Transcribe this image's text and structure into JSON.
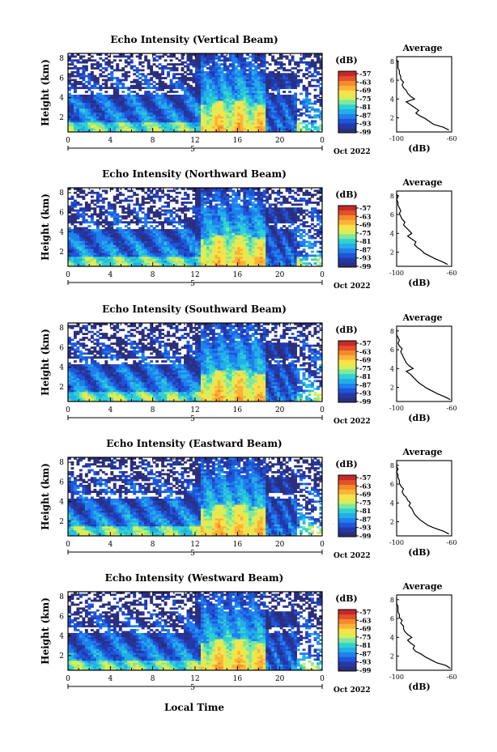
{
  "figure": {
    "xlabel": "Local Time",
    "date_label": "Oct 2022"
  },
  "chart_data": [
    {
      "type": "heatmap",
      "title": "Echo Intensity (Vertical Beam)",
      "ylabel": "Height (km)",
      "xlabel": "Local Time",
      "x_ticks": [
        "0",
        "4",
        "8",
        "12",
        "16",
        "20",
        "0"
      ],
      "date_tick": "5",
      "y_ticks": [
        "2",
        "4",
        "6",
        "8"
      ],
      "xlim": [
        0,
        24
      ],
      "ylim": [
        0.5,
        8.5
      ],
      "colorbar": {
        "label": "(dB)",
        "ticks": [
          "-57",
          "-63",
          "-69",
          "-75",
          "-81",
          "-87",
          "-93",
          "-99"
        ]
      },
      "date_label": "Oct 2022",
      "profile": {
        "title": "Average",
        "xlabel": "(dB)",
        "x_ticks": [
          "-100",
          "-60"
        ],
        "xlim": [
          -100,
          -60
        ],
        "y_ticks": [
          "2",
          "4",
          "6",
          "8"
        ],
        "ylim": [
          0.5,
          8.5
        ],
        "height": [
          0.7,
          1.0,
          1.3,
          1.6,
          1.9,
          2.2,
          2.5,
          2.8,
          3.1,
          3.4,
          3.7,
          4.0,
          4.3,
          4.6,
          4.9,
          5.2,
          5.5,
          5.8,
          6.1,
          6.4,
          6.7,
          7.0,
          7.3,
          7.6,
          7.9,
          8.2
        ],
        "value": [
          -62,
          -66,
          -73,
          -76,
          -79,
          -83,
          -86,
          -84,
          -87,
          -90,
          -93,
          -87,
          -90,
          -92,
          -93,
          -95,
          -96,
          -95,
          -97,
          -97,
          -98,
          -98,
          -99,
          -99,
          -99,
          -100
        ]
      }
    },
    {
      "type": "heatmap",
      "title": "Echo Intensity (Northward Beam)",
      "ylabel": "Height (km)",
      "xlabel": "Local Time",
      "x_ticks": [
        "0",
        "4",
        "8",
        "12",
        "16",
        "20",
        "0"
      ],
      "date_tick": "5",
      "y_ticks": [
        "2",
        "4",
        "6",
        "8"
      ],
      "xlim": [
        0,
        24
      ],
      "ylim": [
        0.5,
        8.5
      ],
      "colorbar": {
        "label": "(dB)",
        "ticks": [
          "-57",
          "-63",
          "-69",
          "-75",
          "-81",
          "-87",
          "-93",
          "-99"
        ]
      },
      "date_label": "Oct 2022",
      "profile": {
        "title": "Average",
        "xlabel": "(dB)",
        "x_ticks": [
          "-100",
          "-60"
        ],
        "xlim": [
          -100,
          -60
        ],
        "y_ticks": [
          "2",
          "4",
          "6",
          "8"
        ],
        "ylim": [
          0.5,
          8.5
        ],
        "height": [
          0.7,
          1.0,
          1.3,
          1.6,
          1.9,
          2.2,
          2.5,
          2.8,
          3.1,
          3.4,
          3.7,
          4.0,
          4.3,
          4.6,
          4.9,
          5.2,
          5.5,
          5.8,
          6.1,
          6.4,
          6.7,
          7.0,
          7.3,
          7.6,
          7.9,
          8.2
        ],
        "value": [
          -63,
          -67,
          -72,
          -76,
          -80,
          -82,
          -85,
          -87,
          -86,
          -89,
          -92,
          -89,
          -91,
          -93,
          -95,
          -94,
          -96,
          -97,
          -98,
          -97,
          -98,
          -99,
          -99,
          -100,
          -99,
          -100
        ]
      }
    },
    {
      "type": "heatmap",
      "title": "Echo Intensity (Southward Beam)",
      "ylabel": "Height (km)",
      "xlabel": "Local Time",
      "x_ticks": [
        "0",
        "4",
        "8",
        "12",
        "16",
        "20",
        "0"
      ],
      "date_tick": "5",
      "y_ticks": [
        "2",
        "4",
        "6",
        "8"
      ],
      "xlim": [
        0,
        24
      ],
      "ylim": [
        0.5,
        8.5
      ],
      "colorbar": {
        "label": "(dB)",
        "ticks": [
          "-57",
          "-63",
          "-69",
          "-75",
          "-81",
          "-87",
          "-93",
          "-99"
        ]
      },
      "date_label": "Oct 2022",
      "profile": {
        "title": "Average",
        "xlabel": "(dB)",
        "x_ticks": [
          "-100",
          "-60"
        ],
        "xlim": [
          -100,
          -60
        ],
        "height": [
          0.7,
          1.0,
          1.3,
          1.6,
          1.9,
          2.2,
          2.5,
          2.8,
          3.1,
          3.4,
          3.7,
          4.0,
          4.3,
          4.6,
          4.9,
          5.2,
          5.5,
          5.8,
          6.1,
          6.4,
          6.7,
          7.0,
          7.3,
          7.6,
          7.9,
          8.2
        ],
        "value": [
          -61,
          -65,
          -70,
          -74,
          -78,
          -81,
          -84,
          -86,
          -88,
          -90,
          -93,
          -88,
          -91,
          -93,
          -94,
          -95,
          -96,
          -97,
          -96,
          -98,
          -99,
          -98,
          -99,
          -100,
          -100,
          -100
        ],
        "y_ticks": [
          "2",
          "4",
          "6",
          "8"
        ],
        "ylim": [
          0.5,
          8.5
        ]
      }
    },
    {
      "type": "heatmap",
      "title": "Echo Intensity (Eastward Beam)",
      "ylabel": "Height (km)",
      "xlabel": "Local Time",
      "x_ticks": [
        "0",
        "4",
        "8",
        "12",
        "16",
        "20",
        "0"
      ],
      "date_tick": "5",
      "y_ticks": [
        "2",
        "4",
        "6",
        "8"
      ],
      "xlim": [
        0,
        24
      ],
      "ylim": [
        0.5,
        8.5
      ],
      "colorbar": {
        "label": "(dB)",
        "ticks": [
          "-57",
          "-63",
          "-69",
          "-75",
          "-81",
          "-87",
          "-93",
          "-99"
        ]
      },
      "date_label": "Oct 2022",
      "profile": {
        "title": "Average",
        "xlabel": "(dB)",
        "x_ticks": [
          "-100",
          "-60"
        ],
        "xlim": [
          -100,
          -60
        ],
        "y_ticks": [
          "2",
          "4",
          "6",
          "8"
        ],
        "ylim": [
          0.5,
          8.5
        ],
        "height": [
          0.7,
          1.0,
          1.3,
          1.6,
          1.9,
          2.2,
          2.5,
          2.8,
          3.1,
          3.4,
          3.7,
          4.0,
          4.3,
          4.6,
          4.9,
          5.2,
          5.5,
          5.8,
          6.1,
          6.4,
          6.7,
          7.0,
          7.3,
          7.6,
          7.9,
          8.2
        ],
        "value": [
          -62,
          -66,
          -72,
          -77,
          -80,
          -83,
          -85,
          -87,
          -88,
          -89,
          -91,
          -90,
          -92,
          -93,
          -95,
          -96,
          -95,
          -97,
          -98,
          -98,
          -99,
          -99,
          -100,
          -99,
          -100,
          -100
        ]
      }
    },
    {
      "type": "heatmap",
      "title": "Echo Intensity (Westward Beam)",
      "ylabel": "Height (km)",
      "xlabel": "Local Time",
      "x_ticks": [
        "0",
        "4",
        "8",
        "12",
        "16",
        "20",
        "0"
      ],
      "date_tick": "5",
      "y_ticks": [
        "2",
        "4",
        "6",
        "8"
      ],
      "xlim": [
        0,
        24
      ],
      "ylim": [
        0.5,
        8.5
      ],
      "colorbar": {
        "label": "(dB)",
        "ticks": [
          "-57",
          "-63",
          "-69",
          "-75",
          "-81",
          "-87",
          "-93",
          "-99"
        ]
      },
      "date_label": "Oct 2022",
      "profile": {
        "title": "Average",
        "xlabel": "(dB)",
        "x_ticks": [
          "-100",
          "-60"
        ],
        "xlim": [
          -100,
          -60
        ],
        "y_ticks": [
          "2",
          "4",
          "6",
          "8"
        ],
        "ylim": [
          0.5,
          8.5
        ],
        "height": [
          0.7,
          1.0,
          1.3,
          1.6,
          1.9,
          2.2,
          2.5,
          2.8,
          3.1,
          3.4,
          3.7,
          4.0,
          4.3,
          4.6,
          4.9,
          5.2,
          5.5,
          5.8,
          6.1,
          6.4,
          6.7,
          7.0,
          7.3,
          7.6,
          7.9,
          8.2
        ],
        "value": [
          -61,
          -64,
          -71,
          -75,
          -79,
          -82,
          -86,
          -88,
          -87,
          -90,
          -92,
          -89,
          -92,
          -94,
          -95,
          -95,
          -97,
          -96,
          -98,
          -98,
          -99,
          -99,
          -99,
          -100,
          -100,
          -100
        ]
      }
    }
  ],
  "colors": {
    "colormap": [
      "#2b2f7a",
      "#2438a8",
      "#1f55d8",
      "#1f80ee",
      "#22aee8",
      "#2fd2d0",
      "#7fe7a0",
      "#d8ee55",
      "#fde04a",
      "#fbb338",
      "#f58a2a",
      "#e4502a",
      "#c42a2a"
    ],
    "missing": "#ffffff",
    "axes": "#000000"
  }
}
